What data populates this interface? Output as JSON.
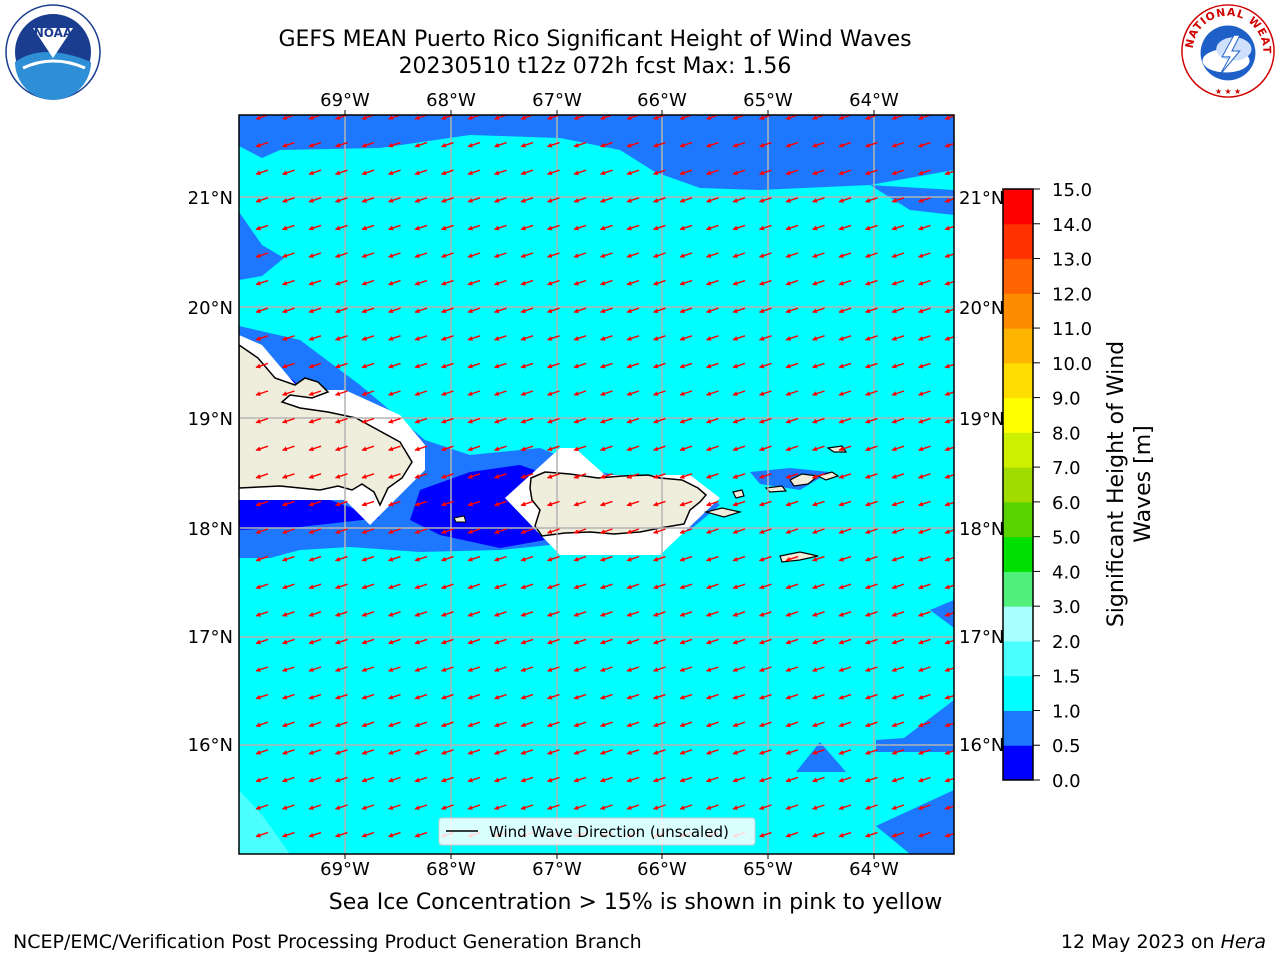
{
  "title": {
    "line1": "GEFS MEAN Puerto Rico Significant Height of Wind Waves",
    "line2": "20230510 t12z 072h fcst   Max: 1.56"
  },
  "logos": {
    "left_text": "NOAA",
    "left_ring_text": "NATIONAL OCEANIC AND ATMOSPHERIC ADMINISTRATION · U.S. DEPARTMENT OF COMMERCE",
    "right_ring_text": "NATIONAL WEATHER SERVICE"
  },
  "map": {
    "lon_labels": [
      "69°W",
      "68°W",
      "67°W",
      "66°W",
      "65°W",
      "64°W"
    ],
    "lat_labels": [
      "21°N",
      "20°N",
      "19°N",
      "18°N",
      "17°N",
      "16°N"
    ],
    "legend_label": "Wind Wave Direction (unscaled)",
    "arrow_color": "#ff0000",
    "wind_direction": "from east-northeast"
  },
  "colorbar": {
    "label": "Significant Height of Wind Waves [m]",
    "ticks": [
      "0.0",
      "0.5",
      "1.0",
      "1.5",
      "2.0",
      "3.0",
      "4.0",
      "5.0",
      "6.0",
      "7.0",
      "8.0",
      "9.0",
      "10.0",
      "11.0",
      "12.0",
      "13.0",
      "14.0",
      "15.0"
    ],
    "colors": [
      "#0000ff",
      "#1e78ff",
      "#00ffff",
      "#4cffff",
      "#aaffff",
      "#50f07a",
      "#00e000",
      "#5ad200",
      "#a0dc00",
      "#ccf000",
      "#ffff00",
      "#ffdd00",
      "#ffb400",
      "#ff8c00",
      "#ff6400",
      "#ff3200",
      "#ff0000"
    ]
  },
  "note": "Sea Ice Concentration > 15% is shown in pink to yellow",
  "footer": {
    "left": "NCEP/EMC/Verification Post Processing Product Generation Branch",
    "date": "12 May 2023 on ",
    "machine": "Hera"
  }
}
